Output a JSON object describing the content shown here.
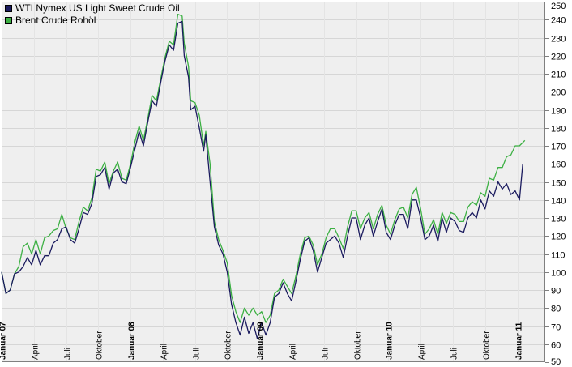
{
  "chart_data": {
    "type": "line",
    "title": "",
    "xlabel": "",
    "ylabel": "",
    "ylim": [
      50,
      250
    ],
    "y_ticks": [
      50,
      60,
      70,
      80,
      90,
      100,
      110,
      120,
      130,
      140,
      150,
      160,
      170,
      180,
      190,
      200,
      210,
      220,
      230,
      240,
      250
    ],
    "x_tick_labels": [
      {
        "label": "Januar 07",
        "month": 0,
        "bold": true
      },
      {
        "label": "April",
        "month": 3,
        "bold": false
      },
      {
        "label": "Juli",
        "month": 6,
        "bold": false
      },
      {
        "label": "Oktober",
        "month": 9,
        "bold": false
      },
      {
        "label": "Januar 08",
        "month": 12,
        "bold": true
      },
      {
        "label": "April",
        "month": 15,
        "bold": false
      },
      {
        "label": "Juli",
        "month": 18,
        "bold": false
      },
      {
        "label": "Oktober",
        "month": 21,
        "bold": false
      },
      {
        "label": "Januar 09",
        "month": 24,
        "bold": true
      },
      {
        "label": "April",
        "month": 27,
        "bold": false
      },
      {
        "label": "Juli",
        "month": 30,
        "bold": false
      },
      {
        "label": "Oktober",
        "month": 33,
        "bold": false
      },
      {
        "label": "Januar 10",
        "month": 36,
        "bold": true
      },
      {
        "label": "April",
        "month": 39,
        "bold": false
      },
      {
        "label": "Juli",
        "month": 42,
        "bold": false
      },
      {
        "label": "Oktober",
        "month": 45,
        "bold": false
      },
      {
        "label": "Januar 11",
        "month": 48,
        "bold": true
      }
    ],
    "grid": true,
    "legend_position": "top-left",
    "series": [
      {
        "name": "WTI Nymex US Light Sweet Crude Oil",
        "color": "#1a1a5e",
        "points": [
          [
            0,
            100
          ],
          [
            0.4,
            88
          ],
          [
            0.8,
            90
          ],
          [
            1.2,
            99
          ],
          [
            1.6,
            100
          ],
          [
            2.0,
            103
          ],
          [
            2.4,
            108
          ],
          [
            2.8,
            104
          ],
          [
            3.2,
            112
          ],
          [
            3.6,
            104
          ],
          [
            4.0,
            109
          ],
          [
            4.4,
            109
          ],
          [
            4.8,
            116
          ],
          [
            5.2,
            118
          ],
          [
            5.6,
            124
          ],
          [
            6.0,
            125
          ],
          [
            6.4,
            118
          ],
          [
            6.8,
            116
          ],
          [
            7.2,
            124
          ],
          [
            7.6,
            133
          ],
          [
            8.0,
            132
          ],
          [
            8.4,
            138
          ],
          [
            8.8,
            153
          ],
          [
            9.2,
            154
          ],
          [
            9.6,
            158
          ],
          [
            10.0,
            146
          ],
          [
            10.4,
            155
          ],
          [
            10.8,
            157
          ],
          [
            11.2,
            150
          ],
          [
            11.6,
            149
          ],
          [
            12.0,
            158
          ],
          [
            12.4,
            168
          ],
          [
            12.8,
            178
          ],
          [
            13.2,
            170
          ],
          [
            13.6,
            183
          ],
          [
            14.0,
            195
          ],
          [
            14.4,
            192
          ],
          [
            14.8,
            205
          ],
          [
            15.2,
            217
          ],
          [
            15.6,
            226
          ],
          [
            16.0,
            223
          ],
          [
            16.4,
            238
          ],
          [
            16.8,
            239
          ],
          [
            17.0,
            220
          ],
          [
            17.4,
            208
          ],
          [
            17.6,
            190
          ],
          [
            18.0,
            192
          ],
          [
            18.4,
            180
          ],
          [
            18.8,
            167
          ],
          [
            19.0,
            176
          ],
          [
            19.4,
            150
          ],
          [
            19.8,
            125
          ],
          [
            20.2,
            115
          ],
          [
            20.6,
            110
          ],
          [
            21.0,
            100
          ],
          [
            21.4,
            82
          ],
          [
            21.8,
            72
          ],
          [
            22.2,
            65
          ],
          [
            22.6,
            75
          ],
          [
            23.0,
            66
          ],
          [
            23.4,
            72
          ],
          [
            23.8,
            63
          ],
          [
            24.2,
            72
          ],
          [
            24.6,
            65
          ],
          [
            25.0,
            72
          ],
          [
            25.4,
            86
          ],
          [
            25.8,
            88
          ],
          [
            26.2,
            94
          ],
          [
            26.6,
            88
          ],
          [
            27.0,
            84
          ],
          [
            27.4,
            95
          ],
          [
            27.8,
            107
          ],
          [
            28.2,
            117
          ],
          [
            28.6,
            119
          ],
          [
            29.0,
            112
          ],
          [
            29.4,
            100
          ],
          [
            29.8,
            108
          ],
          [
            30.2,
            116
          ],
          [
            30.6,
            118
          ],
          [
            31.0,
            120
          ],
          [
            31.4,
            116
          ],
          [
            31.8,
            108
          ],
          [
            32.2,
            120
          ],
          [
            32.6,
            130
          ],
          [
            33.0,
            130
          ],
          [
            33.4,
            118
          ],
          [
            33.8,
            126
          ],
          [
            34.2,
            130
          ],
          [
            34.6,
            120
          ],
          [
            35.0,
            128
          ],
          [
            35.4,
            135
          ],
          [
            35.8,
            122
          ],
          [
            36.2,
            118
          ],
          [
            36.6,
            126
          ],
          [
            37.0,
            132
          ],
          [
            37.4,
            132
          ],
          [
            37.8,
            124
          ],
          [
            38.2,
            140
          ],
          [
            38.6,
            140
          ],
          [
            39.0,
            130
          ],
          [
            39.4,
            118
          ],
          [
            39.8,
            120
          ],
          [
            40.2,
            126
          ],
          [
            40.6,
            117
          ],
          [
            41.0,
            130
          ],
          [
            41.4,
            122
          ],
          [
            41.8,
            130
          ],
          [
            42.2,
            128
          ],
          [
            42.6,
            123
          ],
          [
            43.0,
            122
          ],
          [
            43.4,
            130
          ],
          [
            43.8,
            133
          ],
          [
            44.2,
            130
          ],
          [
            44.6,
            140
          ],
          [
            45.0,
            135
          ],
          [
            45.4,
            145
          ],
          [
            45.8,
            142
          ],
          [
            46.2,
            150
          ],
          [
            46.6,
            146
          ],
          [
            47.0,
            149
          ],
          [
            47.4,
            143
          ],
          [
            47.8,
            145
          ],
          [
            48.2,
            140
          ],
          [
            48.5,
            160
          ]
        ]
      },
      {
        "name": "Brent Crude Rohöl",
        "color": "#3cb043",
        "points": [
          [
            0,
            100
          ],
          [
            0.4,
            88
          ],
          [
            0.8,
            90
          ],
          [
            1.2,
            99
          ],
          [
            1.6,
            103
          ],
          [
            2.0,
            114
          ],
          [
            2.4,
            116
          ],
          [
            2.8,
            110
          ],
          [
            3.2,
            118
          ],
          [
            3.6,
            110
          ],
          [
            4.0,
            119
          ],
          [
            4.4,
            120
          ],
          [
            4.8,
            123
          ],
          [
            5.2,
            124
          ],
          [
            5.6,
            132
          ],
          [
            6.0,
            124
          ],
          [
            6.4,
            119
          ],
          [
            6.8,
            118
          ],
          [
            7.2,
            128
          ],
          [
            7.6,
            136
          ],
          [
            8.0,
            134
          ],
          [
            8.4,
            141
          ],
          [
            8.8,
            157
          ],
          [
            9.2,
            156
          ],
          [
            9.6,
            161
          ],
          [
            10.0,
            149
          ],
          [
            10.4,
            156
          ],
          [
            10.8,
            161
          ],
          [
            11.2,
            152
          ],
          [
            11.6,
            151
          ],
          [
            12.0,
            160
          ],
          [
            12.4,
            172
          ],
          [
            12.8,
            181
          ],
          [
            13.2,
            173
          ],
          [
            13.6,
            185
          ],
          [
            14.0,
            198
          ],
          [
            14.4,
            195
          ],
          [
            14.8,
            207
          ],
          [
            15.2,
            219
          ],
          [
            15.6,
            228
          ],
          [
            16.0,
            226
          ],
          [
            16.4,
            243
          ],
          [
            16.8,
            242
          ],
          [
            17.0,
            227
          ],
          [
            17.4,
            214
          ],
          [
            17.6,
            195
          ],
          [
            18.0,
            194
          ],
          [
            18.4,
            187
          ],
          [
            18.8,
            170
          ],
          [
            19.0,
            178
          ],
          [
            19.4,
            160
          ],
          [
            19.8,
            128
          ],
          [
            20.2,
            118
          ],
          [
            20.6,
            112
          ],
          [
            21.0,
            105
          ],
          [
            21.4,
            87
          ],
          [
            21.8,
            78
          ],
          [
            22.2,
            72
          ],
          [
            22.6,
            80
          ],
          [
            23.0,
            76
          ],
          [
            23.4,
            80
          ],
          [
            23.8,
            76
          ],
          [
            24.2,
            78
          ],
          [
            24.6,
            72
          ],
          [
            25.0,
            76
          ],
          [
            25.4,
            88
          ],
          [
            25.8,
            90
          ],
          [
            26.2,
            96
          ],
          [
            26.6,
            92
          ],
          [
            27.0,
            88
          ],
          [
            27.4,
            98
          ],
          [
            27.8,
            110
          ],
          [
            28.2,
            119
          ],
          [
            28.6,
            120
          ],
          [
            29.0,
            115
          ],
          [
            29.4,
            104
          ],
          [
            29.8,
            110
          ],
          [
            30.2,
            119
          ],
          [
            30.6,
            124
          ],
          [
            31.0,
            124
          ],
          [
            31.4,
            119
          ],
          [
            31.8,
            113
          ],
          [
            32.2,
            125
          ],
          [
            32.6,
            134
          ],
          [
            33.0,
            134
          ],
          [
            33.4,
            124
          ],
          [
            33.8,
            130
          ],
          [
            34.2,
            133
          ],
          [
            34.6,
            124
          ],
          [
            35.0,
            132
          ],
          [
            35.4,
            137
          ],
          [
            35.8,
            126
          ],
          [
            36.2,
            121
          ],
          [
            36.6,
            129
          ],
          [
            37.0,
            135
          ],
          [
            37.4,
            136
          ],
          [
            37.8,
            130
          ],
          [
            38.2,
            143
          ],
          [
            38.6,
            147
          ],
          [
            39.0,
            135
          ],
          [
            39.4,
            121
          ],
          [
            39.8,
            124
          ],
          [
            40.2,
            129
          ],
          [
            40.6,
            121
          ],
          [
            41.0,
            133
          ],
          [
            41.4,
            127
          ],
          [
            41.8,
            133
          ],
          [
            42.2,
            132
          ],
          [
            42.6,
            128
          ],
          [
            43.0,
            128
          ],
          [
            43.4,
            136
          ],
          [
            43.8,
            139
          ],
          [
            44.2,
            137
          ],
          [
            44.6,
            144
          ],
          [
            45.0,
            142
          ],
          [
            45.4,
            152
          ],
          [
            45.8,
            151
          ],
          [
            46.2,
            158
          ],
          [
            46.6,
            158
          ],
          [
            47.0,
            164
          ],
          [
            47.4,
            165
          ],
          [
            47.8,
            170
          ],
          [
            48.2,
            170
          ],
          [
            48.7,
            173
          ]
        ]
      }
    ]
  }
}
